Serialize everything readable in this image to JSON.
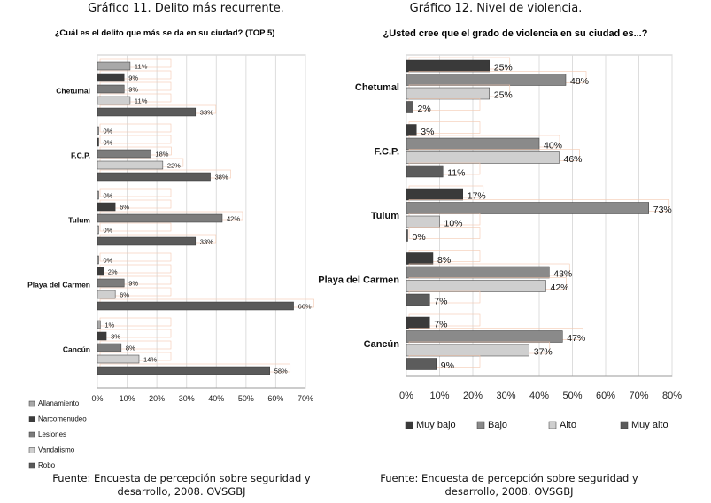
{
  "figures": [
    {
      "caption": "Gráfico 11. Delito más recurrente.",
      "source_line1": "Fuente: Encuesta de percepción sobre seguridad y",
      "source_line2": "desarrollo, 2008. OVSGBJ"
    },
    {
      "caption": "Gráfico 12. Nivel de violencia.",
      "source_line1": "Fuente: Encuesta de percepción sobre seguridad y",
      "source_line2": "desarrollo, 2008. OVSGBJ"
    }
  ],
  "colors": {
    "Allanamiento": "#a8a8a8",
    "Narcomenudeo": "#3c3c3c",
    "Lesiones": "#7c7c7c",
    "Vandalismo": "#cfcfcf",
    "Robo": "#5a5a5a",
    "Muy bajo": "#3a3a3a",
    "Bajo": "#8a8a8a",
    "Alto": "#cfcfcf",
    "Muy alto": "#5c5c5c"
  },
  "chart_data": [
    {
      "type": "bar",
      "orientation": "horizontal",
      "title": "¿Cuál es el delito que más se da en su ciudad? (TOP 5)",
      "categories": [
        "Chetumal",
        "F.C.P.",
        "Tulum",
        "Playa del Carmen",
        "Cancún"
      ],
      "series": [
        {
          "name": "Allanamiento",
          "values": [
            11,
            0,
            0,
            0,
            1
          ]
        },
        {
          "name": "Narcomenudeo",
          "values": [
            9,
            0,
            6,
            2,
            3
          ]
        },
        {
          "name": "Lesiones",
          "values": [
            9,
            18,
            42,
            9,
            8
          ]
        },
        {
          "name": "Vandalismo",
          "values": [
            11,
            22,
            0,
            6,
            14
          ]
        },
        {
          "name": "Robo",
          "values": [
            33,
            38,
            33,
            66,
            58
          ]
        }
      ],
      "xlim": [
        0,
        70
      ],
      "xticks": [
        "0%",
        "10%",
        "20%",
        "30%",
        "40%",
        "50%",
        "60%",
        "70%"
      ],
      "legend_position": "bottom-left"
    },
    {
      "type": "bar",
      "orientation": "horizontal",
      "title": "¿Usted cree que el grado de violencia en su ciudad es...?",
      "categories": [
        "Chetumal",
        "F.C.P.",
        "Tulum",
        "Playa del Carmen",
        "Cancún"
      ],
      "series": [
        {
          "name": "Muy bajo",
          "values": [
            25,
            3,
            17,
            8,
            7
          ]
        },
        {
          "name": "Bajo",
          "values": [
            48,
            40,
            73,
            43,
            47
          ]
        },
        {
          "name": "Alto",
          "values": [
            25,
            46,
            10,
            42,
            37
          ]
        },
        {
          "name": "Muy alto",
          "values": [
            2,
            11,
            0,
            7,
            9
          ]
        }
      ],
      "xlim": [
        0,
        80
      ],
      "xticks": [
        "0%",
        "10%",
        "20%",
        "30%",
        "40%",
        "50%",
        "60%",
        "70%",
        "80%"
      ],
      "legend_position": "bottom"
    }
  ]
}
